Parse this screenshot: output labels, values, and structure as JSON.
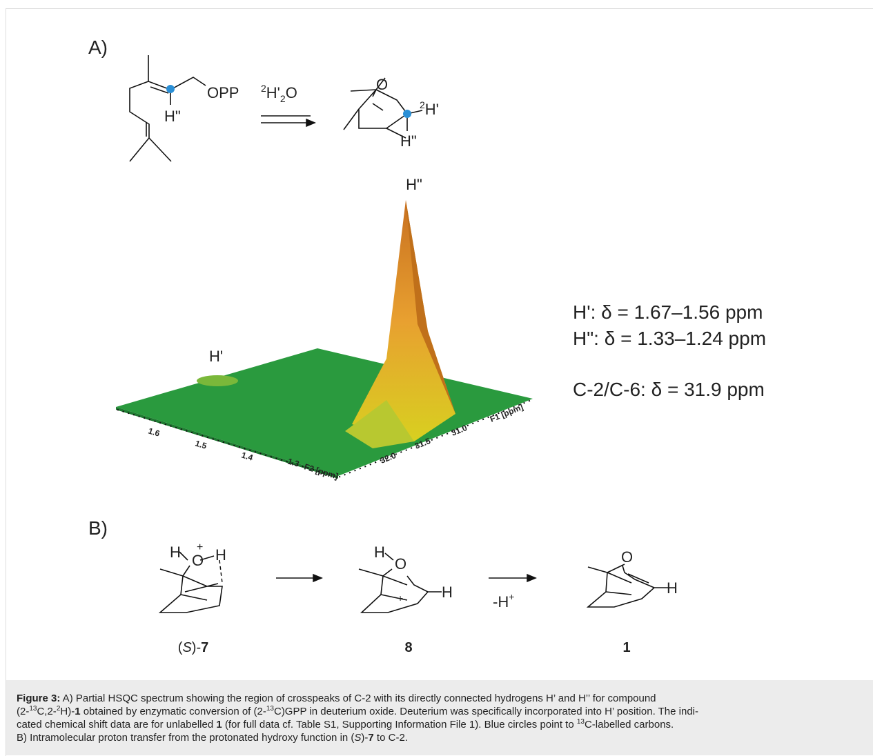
{
  "panel_a": {
    "label": "A)",
    "reactant": {
      "leaving_group": "OPP",
      "hydrogen": "H\""
    },
    "reagent": [
      "2",
      "H'",
      "2",
      "O"
    ],
    "product": {
      "oxygen": "O",
      "deuterium_sup": "2",
      "deuterium": "H'",
      "hydrogen": "H\""
    },
    "spectrum": {
      "peak_labels": [
        "H'",
        "H\""
      ],
      "f2_ticks": [
        "1.6",
        "1.5",
        "1.4",
        "1.3"
      ],
      "f2_label": "F2 [ppm]",
      "f1_ticks": [
        "32.0",
        "31.5",
        "31.0"
      ],
      "f1_label": "F1 [ppm]"
    },
    "shifts": [
      "H': δ = 1.67–1.56 ppm",
      "H\": δ = 1.33–1.24 ppm",
      "C-2/C-6: δ = 31.9 ppm"
    ]
  },
  "panel_b": {
    "label": "B)",
    "compound_7": {
      "atoms": [
        "H",
        "+",
        "O",
        "H"
      ],
      "label": [
        "(",
        "S",
        ")-",
        "7"
      ]
    },
    "compound_8": {
      "atoms": [
        "H",
        "O",
        "+",
        "H"
      ],
      "label": "8"
    },
    "compound_1": {
      "atoms": [
        "O",
        "H"
      ],
      "label": "1"
    },
    "elimination": [
      "-H",
      "+"
    ]
  },
  "caption": [
    "Figure 3:",
    " A) Partial HSQC spectrum showing the region of crosspeaks of C-2 with its directly connected hydrogens H’ and H’’ for compound",
    "(2-",
    "13",
    "C,2-",
    "2",
    "H)-",
    "1",
    " obtained by enzymatic conversion of (2-",
    "13",
    "C)GPP in deuterium oxide. Deuterium was specifically incorporated into H’ position. The indi-",
    "cated chemical shift data are for unlabelled ",
    "1",
    " (for full data cf. Table S1, Supporting Information File 1). Blue circles point to ",
    "13",
    "C-labelled carbons.",
    "B) Intramolecular proton transfer from the protonated hydroxy function in (",
    "S",
    ")-",
    "7",
    " to C-2."
  ]
}
